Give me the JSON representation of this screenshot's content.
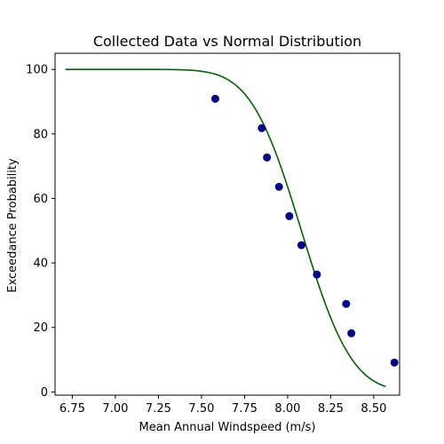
{
  "chart_data": {
    "type": "scatter",
    "title": "Collected Data vs Normal Distribution",
    "xlabel": "Mean Annual Windspeed (m/s)",
    "ylabel": "Exceedance Probability",
    "xlim": [
      6.65,
      8.65
    ],
    "ylim": [
      -1,
      105
    ],
    "xticks": [
      6.75,
      7.0,
      7.25,
      7.5,
      7.75,
      8.0,
      8.25,
      8.5
    ],
    "xtick_labels": [
      "6.75",
      "7.00",
      "7.25",
      "7.50",
      "7.75",
      "8.00",
      "8.25",
      "8.50"
    ],
    "yticks": [
      0,
      20,
      40,
      60,
      80,
      100
    ],
    "ytick_labels": [
      "0",
      "20",
      "40",
      "60",
      "80",
      "100"
    ],
    "grid": false,
    "legend": "none",
    "scatter_series": {
      "color": "#00008b",
      "points": [
        {
          "x": 7.58,
          "y": 90.9
        },
        {
          "x": 7.85,
          "y": 81.8
        },
        {
          "x": 7.88,
          "y": 72.7
        },
        {
          "x": 7.95,
          "y": 63.6
        },
        {
          "x": 8.01,
          "y": 54.5
        },
        {
          "x": 8.08,
          "y": 45.5
        },
        {
          "x": 8.17,
          "y": 36.4
        },
        {
          "x": 8.34,
          "y": 27.3
        },
        {
          "x": 8.37,
          "y": 18.2
        },
        {
          "x": 8.62,
          "y": 9.1
        }
      ]
    },
    "curve_series": {
      "color": "#006400",
      "distribution": "normal-exceedance",
      "mean": 8.08,
      "std": 0.23,
      "x_start": 6.71,
      "x_end": 8.57
    }
  }
}
